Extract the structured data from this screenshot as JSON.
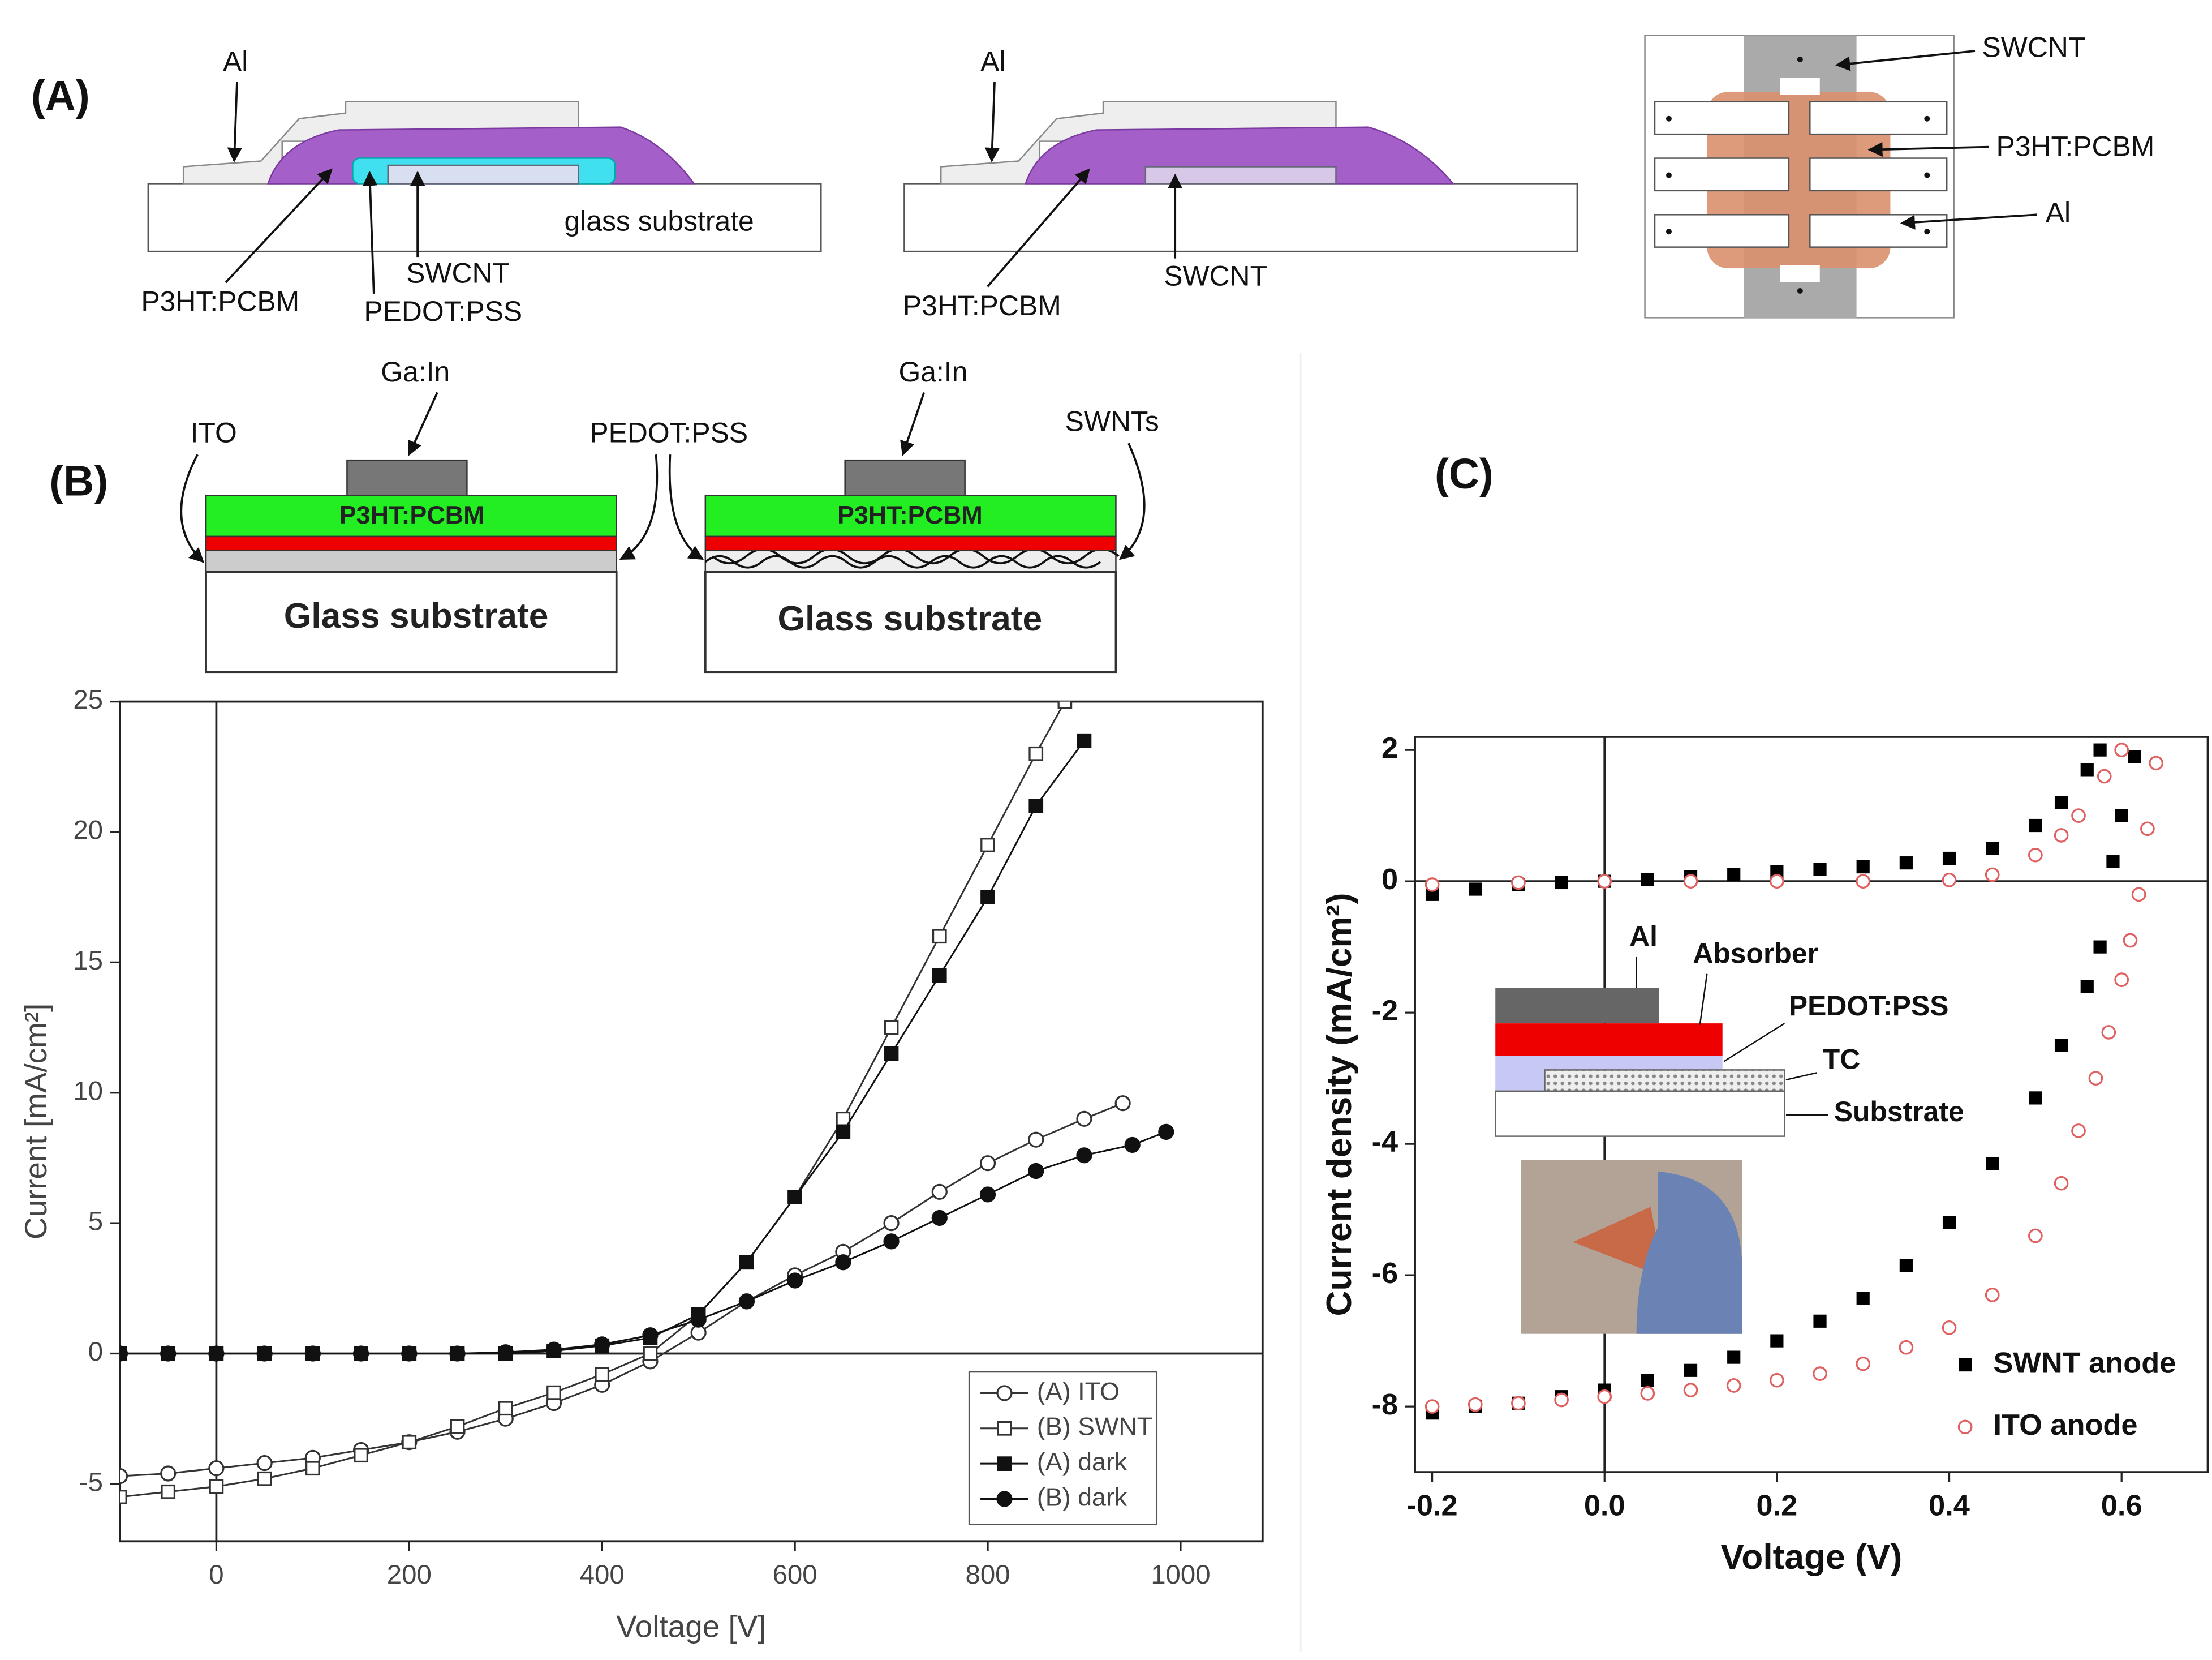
{
  "panels": [
    "(A)",
    "(B)",
    "(C)"
  ],
  "diagram_a": {
    "left": [
      "Al",
      "P3HT:PCBM",
      "SWCNT",
      "PEDOT:PSS",
      "glass substrate"
    ],
    "middle": [
      "Al",
      "P3HT:PCBM",
      "SWCNT"
    ],
    "right": [
      "SWCNT",
      "P3HT:PCBM",
      "Al"
    ]
  },
  "diagram_b": {
    "left": [
      "Ga:In",
      "ITO",
      "PEDOT:PSS",
      "P3HT:PCBM",
      "Glass substrate"
    ],
    "right": [
      "Ga:In",
      "SWNTs",
      "P3HT:PCBM",
      "Glass substrate"
    ]
  },
  "inset_c": [
    "Al",
    "Absorber",
    "PEDOT:PSS",
    "TC",
    "Substrate"
  ],
  "chart_data": [
    {
      "type": "line",
      "x_label": "Voltage [V]",
      "y_label": "Current [mA/cm²]",
      "xlim": [
        -100,
        1085
      ],
      "ylim": [
        -7.2,
        25
      ],
      "xticks": [
        0,
        200,
        400,
        600,
        800,
        1000
      ],
      "yticks": [
        -5,
        0,
        5,
        10,
        15,
        20,
        25
      ],
      "grid": false,
      "legend": "lower right",
      "series": [
        {
          "name": "(A) ITO",
          "color": "#333333",
          "marker": "circle",
          "filled": false,
          "x": [
            -100,
            -50,
            0,
            50,
            100,
            150,
            200,
            250,
            300,
            350,
            400,
            450,
            500,
            550,
            600,
            650,
            700,
            750,
            800,
            850,
            900,
            940
          ],
          "values": [
            -4.7,
            -4.6,
            -4.4,
            -4.2,
            -4.0,
            -3.7,
            -3.4,
            -3.0,
            -2.5,
            -1.9,
            -1.2,
            -0.3,
            0.8,
            2.0,
            3.0,
            3.9,
            5.0,
            6.2,
            7.3,
            8.2,
            9.0,
            9.6
          ]
        },
        {
          "name": "(B) SWNT",
          "color": "#333333",
          "marker": "square",
          "filled": false,
          "x": [
            -100,
            -50,
            0,
            50,
            100,
            150,
            200,
            250,
            300,
            350,
            400,
            450,
            500,
            550,
            600,
            650,
            700,
            750,
            800,
            850,
            880
          ],
          "values": [
            -5.5,
            -5.3,
            -5.1,
            -4.8,
            -4.4,
            -3.9,
            -3.4,
            -2.8,
            -2.1,
            -1.5,
            -0.8,
            0.0,
            1.5,
            3.5,
            6.0,
            9.0,
            12.5,
            16.0,
            19.5,
            23.0,
            25.0
          ]
        },
        {
          "name": "(A) dark",
          "color": "#111111",
          "marker": "square",
          "filled": true,
          "x": [
            -100,
            -50,
            0,
            50,
            100,
            150,
            200,
            250,
            300,
            350,
            400,
            450,
            500,
            550,
            600,
            650,
            700,
            750,
            800,
            850,
            900
          ],
          "values": [
            0,
            0,
            0,
            0,
            0,
            0,
            0,
            0,
            0,
            0.1,
            0.3,
            0.6,
            1.5,
            3.5,
            6.0,
            8.5,
            11.5,
            14.5,
            17.5,
            21.0,
            23.5
          ]
        },
        {
          "name": "(B) dark",
          "color": "#111111",
          "marker": "circle",
          "filled": true,
          "x": [
            -100,
            -50,
            0,
            50,
            100,
            150,
            200,
            250,
            300,
            350,
            400,
            450,
            500,
            550,
            600,
            650,
            700,
            750,
            800,
            850,
            900,
            950,
            985
          ],
          "values": [
            0,
            0,
            0,
            0,
            0,
            0,
            0,
            0,
            0.05,
            0.15,
            0.35,
            0.7,
            1.3,
            2.0,
            2.8,
            3.5,
            4.3,
            5.2,
            6.1,
            7.0,
            7.6,
            8.0,
            8.5
          ]
        }
      ]
    },
    {
      "type": "scatter",
      "x_label": "Voltage (V)",
      "y_label": "Current density (mA/cm²)",
      "xlim": [
        -0.22,
        0.7
      ],
      "ylim": [
        -9.0,
        2.2
      ],
      "xticks": [
        -0.2,
        {
          "value": 0,
          "label": "0.0"
        },
        0.2,
        0.4,
        0.6
      ],
      "yticks": [
        -8,
        -6,
        -4,
        -2,
        0,
        2
      ],
      "grid": false,
      "legend": "lower right",
      "series": [
        {
          "name": "SWNT anode",
          "color": "#000000",
          "marker": "square",
          "filled": true,
          "x": [
            -0.2,
            -0.15,
            -0.1,
            -0.05,
            0,
            0.05,
            0.1,
            0.15,
            0.2,
            0.25,
            0.3,
            0.35,
            0.4,
            0.45,
            0.5,
            0.53,
            0.56,
            0.575,
            0.59,
            0.6,
            0.615
          ],
          "values": [
            -8.1,
            -8.0,
            -7.95,
            -7.85,
            -7.75,
            -7.6,
            -7.45,
            -7.25,
            -7.0,
            -6.7,
            -6.35,
            -5.85,
            -5.2,
            -4.3,
            -3.3,
            -2.5,
            -1.6,
            -1.0,
            0.3,
            1.0,
            1.9
          ]
        },
        {
          "name": "ITO anode",
          "color": "#e06060",
          "marker": "circle",
          "filled": false,
          "x": [
            -0.2,
            -0.15,
            -0.1,
            -0.05,
            0,
            0.05,
            0.1,
            0.15,
            0.2,
            0.25,
            0.3,
            0.35,
            0.4,
            0.45,
            0.5,
            0.53,
            0.55,
            0.57,
            0.585,
            0.6,
            0.61,
            0.62,
            0.63,
            0.64
          ],
          "values": [
            -8.0,
            -7.97,
            -7.95,
            -7.9,
            -7.85,
            -7.8,
            -7.75,
            -7.68,
            -7.6,
            -7.5,
            -7.35,
            -7.1,
            -6.8,
            -6.3,
            -5.4,
            -4.6,
            -3.8,
            -3.0,
            -2.3,
            -1.5,
            -0.9,
            -0.2,
            0.8,
            1.8
          ]
        },
        {
          "color": "#000000",
          "marker": "square",
          "filled": true,
          "x": [
            -0.2,
            -0.15,
            -0.1,
            -0.05,
            0,
            0.05,
            0.1,
            0.15,
            0.2,
            0.25,
            0.3,
            0.35,
            0.4,
            0.45,
            0.5,
            0.53,
            0.56,
            0.575
          ],
          "values": [
            -0.2,
            -0.12,
            -0.05,
            -0.02,
            0,
            0.03,
            0.07,
            0.1,
            0.15,
            0.18,
            0.22,
            0.28,
            0.35,
            0.5,
            0.85,
            1.2,
            1.7,
            2.0
          ]
        },
        {
          "color": "#e06060",
          "marker": "circle",
          "filled": false,
          "x": [
            -0.2,
            -0.1,
            0,
            0.1,
            0.2,
            0.3,
            0.4,
            0.45,
            0.5,
            0.53,
            0.55,
            0.58,
            0.6
          ],
          "values": [
            -0.05,
            -0.02,
            0,
            0,
            0,
            0,
            0.02,
            0.1,
            0.4,
            0.7,
            1.0,
            1.6,
            2.0
          ]
        }
      ]
    }
  ]
}
